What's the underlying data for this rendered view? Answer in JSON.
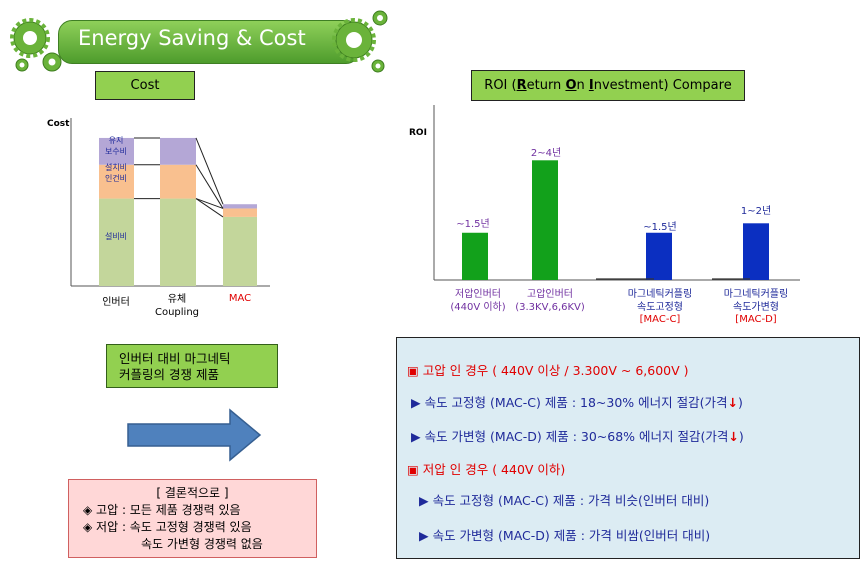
{
  "header": {
    "title": "Energy Saving & Cost"
  },
  "cost_section": {
    "label": "Cost",
    "y_axis_label": "Cost",
    "segment_labels": {
      "maintenance": "유지\n보수비",
      "install_labor": "설치비\n인건비",
      "equipment": "설비비"
    },
    "categories": [
      "인버터",
      "유체\nCoupling",
      "MAC"
    ]
  },
  "roi_section": {
    "label_parts": [
      "ROI (",
      "R",
      "eturn ",
      "O",
      "n ",
      "I",
      "nvestment) Compare"
    ],
    "y_axis_label": "ROI",
    "categories": [
      "저압인버터\n(440V 이하)",
      "고압인버터\n(3.3KV,6,6KV)",
      "마그네틱커플링\n속도고정형",
      "마그네틱커플링\n속도가변형"
    ],
    "category_tags": [
      "",
      "",
      "[MAC-C]",
      "[MAC-D]"
    ],
    "value_labels": [
      "~1.5년",
      "2~4년",
      "~1.5년",
      "1~2년"
    ]
  },
  "comparison_box": {
    "text": "인버터 대비 마그네틱\n커플링의 경쟁 제품"
  },
  "conclusion_box": {
    "title": "[ 결론적으로 ]",
    "line1": "◈ 고압 : 모든 제품 경쟁력 있음",
    "line2": "◈ 저압 : 속도 고정형 경쟁력 있음",
    "line3": "속도 가변형 경쟁력 없음"
  },
  "info_box": {
    "high_title": "▣ 고압 인 경우 ( 440V 이상 / 3.300V ~ 6,600V )",
    "high_item1": "▶ 속도 고정형 (MAC-C) 제품 : 18~30% 에너지 절감(가격",
    "high_item2": "▶ 속도 가변형 (MAC-D) 제품 : 30~68% 에너지 절감(가격",
    "close_paren": ")",
    "low_title": "▣ 저압 인 경우 ( 440V 이하)",
    "low_item1": "▶ 속도 고정형 (MAC-C) 제품 : 가격 비슷(인버터 대비)",
    "low_item2": "▶ 속도 가변형 (MAC-D) 제품 : 가격 비쌈(인버터 대비)"
  },
  "colors": {
    "green_box": "#92d050",
    "purple": "#b4a7d6",
    "peach": "#f9c08f",
    "light_green": "#c3d69b",
    "roi_green": "#12a11b",
    "roi_blue": "#0b2fc1"
  },
  "chart_data": [
    {
      "type": "bar",
      "stacked": true,
      "categories": [
        "인버터",
        "유체 Coupling",
        "MAC"
      ],
      "series": [
        {
          "name": "설비비",
          "values": [
            62,
            62,
            49
          ]
        },
        {
          "name": "설치비 인건비",
          "values": [
            24,
            24,
            6
          ]
        },
        {
          "name": "유지 보수비",
          "values": [
            19,
            19,
            3
          ]
        }
      ],
      "ylabel": "Cost",
      "grid": false
    },
    {
      "type": "bar",
      "categories": [
        "저압인버터 (440V 이하)",
        "고압인버터 (3.3KV,6,6KV)",
        "마그네틱커플링 속도고정형 [MAC-C]",
        "마그네틱커플링 속도가변형 [MAC-D]"
      ],
      "data_labels": [
        "~1.5년",
        "2~4년",
        "~1.5년",
        "1~2년"
      ],
      "values": [
        1.5,
        3.8,
        1.5,
        1.8
      ],
      "ylabel": "ROI",
      "colors": [
        "#12a11b",
        "#12a11b",
        "#0b2fc1",
        "#0b2fc1"
      ],
      "grid": false
    }
  ]
}
